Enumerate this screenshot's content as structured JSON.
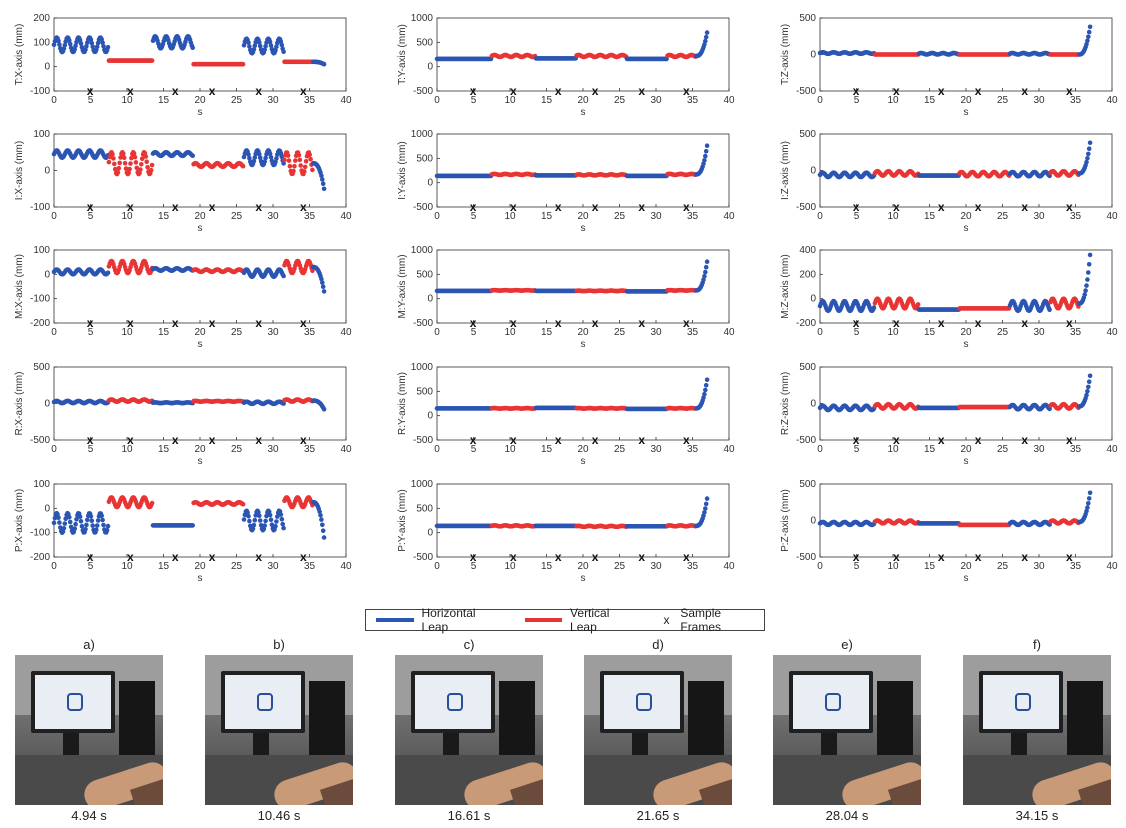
{
  "chart_data": {
    "type": "scatter",
    "x_axis": {
      "label": "s",
      "ticks": [
        0,
        5,
        10,
        15,
        20,
        25,
        30,
        35,
        40
      ],
      "range": [
        0,
        40
      ]
    },
    "segments": [
      {
        "label": "Horizontal Leap",
        "start": 0,
        "end": 7.5
      },
      {
        "label": "Vertical Leap",
        "start": 7.5,
        "end": 13.5
      },
      {
        "label": "Horizontal Leap",
        "start": 13.5,
        "end": 19
      },
      {
        "label": "Vertical Leap",
        "start": 19,
        "end": 26
      },
      {
        "label": "Horizontal Leap",
        "start": 26,
        "end": 31.5
      },
      {
        "label": "Vertical Leap",
        "start": 31.5,
        "end": 35.5
      },
      {
        "label": "Horizontal Leap",
        "start": 35.5,
        "end": 37
      }
    ],
    "sample_frame_times": [
      4.94,
      10.46,
      16.61,
      21.65,
      28.04,
      34.15
    ],
    "subplots": [
      {
        "ylabel": "T:X-axis (mm)",
        "ylim": [
          -100,
          200
        ],
        "yticks": [
          -100,
          0,
          100,
          200
        ],
        "means": [
          90,
          25,
          100,
          10,
          85,
          20,
          10
        ],
        "amp": [
          30,
          0,
          25,
          0,
          30,
          0,
          30
        ]
      },
      {
        "ylabel": "T:Y-axis (mm)",
        "ylim": [
          -500,
          1000
        ],
        "yticks": [
          -500,
          0,
          500,
          1000
        ],
        "means": [
          160,
          220,
          170,
          220,
          160,
          220,
          700
        ],
        "amp": [
          0,
          20,
          0,
          20,
          0,
          20,
          0
        ]
      },
      {
        "ylabel": "T:Z-axis (mm)",
        "ylim": [
          -500,
          500
        ],
        "yticks": [
          -500,
          0,
          500
        ],
        "means": [
          20,
          0,
          10,
          0,
          10,
          0,
          380
        ],
        "amp": [
          10,
          0,
          10,
          0,
          10,
          0,
          0
        ]
      },
      {
        "ylabel": "I:X-axis (mm)",
        "ylim": [
          -100,
          100
        ],
        "yticks": [
          -100,
          0,
          100
        ],
        "means": [
          45,
          20,
          45,
          15,
          35,
          20,
          -50
        ],
        "amp": [
          10,
          30,
          5,
          5,
          20,
          30,
          0
        ]
      },
      {
        "ylabel": "I:Y-axis (mm)",
        "ylim": [
          -500,
          1000
        ],
        "yticks": [
          -500,
          0,
          500,
          1000
        ],
        "means": [
          140,
          170,
          150,
          160,
          140,
          170,
          760
        ],
        "amp": [
          0,
          10,
          0,
          10,
          0,
          10,
          0
        ]
      },
      {
        "ylabel": "I:Z-axis (mm)",
        "ylim": [
          -500,
          500
        ],
        "yticks": [
          -500,
          0,
          500
        ],
        "means": [
          -60,
          -40,
          -70,
          -50,
          -50,
          -40,
          380
        ],
        "amp": [
          30,
          30,
          0,
          30,
          30,
          30,
          0
        ]
      },
      {
        "ylabel": "M:X-axis (mm)",
        "ylim": [
          -200,
          100
        ],
        "yticks": [
          -200,
          -100,
          0,
          100
        ],
        "means": [
          10,
          30,
          20,
          15,
          5,
          30,
          -70
        ],
        "amp": [
          10,
          25,
          5,
          5,
          15,
          25,
          0
        ]
      },
      {
        "ylabel": "M:Y-axis (mm)",
        "ylim": [
          -500,
          1000
        ],
        "yticks": [
          -500,
          0,
          500,
          1000
        ],
        "means": [
          160,
          170,
          160,
          160,
          150,
          170,
          760
        ],
        "amp": [
          0,
          5,
          0,
          5,
          0,
          5,
          0
        ]
      },
      {
        "ylabel": "M:Z-axis (mm)",
        "ylim": [
          -200,
          400
        ],
        "yticks": [
          -200,
          0,
          200,
          400
        ],
        "means": [
          -60,
          -40,
          -90,
          -80,
          -60,
          -40,
          360
        ],
        "amp": [
          40,
          40,
          0,
          0,
          40,
          40,
          0
        ]
      },
      {
        "ylabel": "R:X-axis (mm)",
        "ylim": [
          -500,
          500
        ],
        "yticks": [
          -500,
          0,
          500
        ],
        "means": [
          20,
          40,
          10,
          30,
          10,
          40,
          -80
        ],
        "amp": [
          15,
          15,
          5,
          5,
          15,
          15,
          0
        ]
      },
      {
        "ylabel": "R:Y-axis (mm)",
        "ylim": [
          -500,
          1000
        ],
        "yticks": [
          -500,
          0,
          500,
          1000
        ],
        "means": [
          150,
          150,
          160,
          150,
          140,
          150,
          740
        ],
        "amp": [
          0,
          5,
          0,
          5,
          0,
          5,
          0
        ]
      },
      {
        "ylabel": "R:Z-axis (mm)",
        "ylim": [
          -500,
          500
        ],
        "yticks": [
          -500,
          0,
          500
        ],
        "means": [
          -60,
          -40,
          -60,
          -50,
          -50,
          -40,
          380
        ],
        "amp": [
          30,
          30,
          0,
          0,
          30,
          30,
          0
        ]
      },
      {
        "ylabel": "P:X-axis (mm)",
        "ylim": [
          -200,
          100
        ],
        "yticks": [
          -200,
          -100,
          0,
          100
        ],
        "means": [
          -60,
          25,
          -70,
          20,
          -50,
          25,
          -120
        ],
        "amp": [
          40,
          20,
          0,
          5,
          40,
          20,
          0
        ]
      },
      {
        "ylabel": "P:Y-axis (mm)",
        "ylim": [
          -500,
          1000
        ],
        "yticks": [
          -500,
          0,
          500,
          1000
        ],
        "means": [
          140,
          140,
          140,
          130,
          130,
          140,
          700
        ],
        "amp": [
          0,
          10,
          0,
          10,
          0,
          10,
          0
        ]
      },
      {
        "ylabel": "P:Z-axis (mm)",
        "ylim": [
          -500,
          500
        ],
        "yticks": [
          -500,
          0,
          500
        ],
        "means": [
          -40,
          -20,
          -40,
          -60,
          -40,
          -20,
          380
        ],
        "amp": [
          20,
          20,
          0,
          0,
          20,
          20,
          0
        ]
      }
    ],
    "colors": {
      "horizontal": "#2b55b3",
      "vertical": "#e83434"
    },
    "legend": {
      "placement": "bottom-center"
    }
  },
  "legend_labels": {
    "horizontal": "Horizontal Leap",
    "vertical": "Vertical Leap",
    "marker": "x",
    "samples": "Sample Frames"
  },
  "frames": [
    {
      "letter": "a)",
      "time": "4.94 s"
    },
    {
      "letter": "b)",
      "time": "10.46 s"
    },
    {
      "letter": "c)",
      "time": "16.61 s"
    },
    {
      "letter": "d)",
      "time": "21.65 s"
    },
    {
      "letter": "e)",
      "time": "28.04 s"
    },
    {
      "letter": "f)",
      "time": "34.15 s"
    }
  ]
}
